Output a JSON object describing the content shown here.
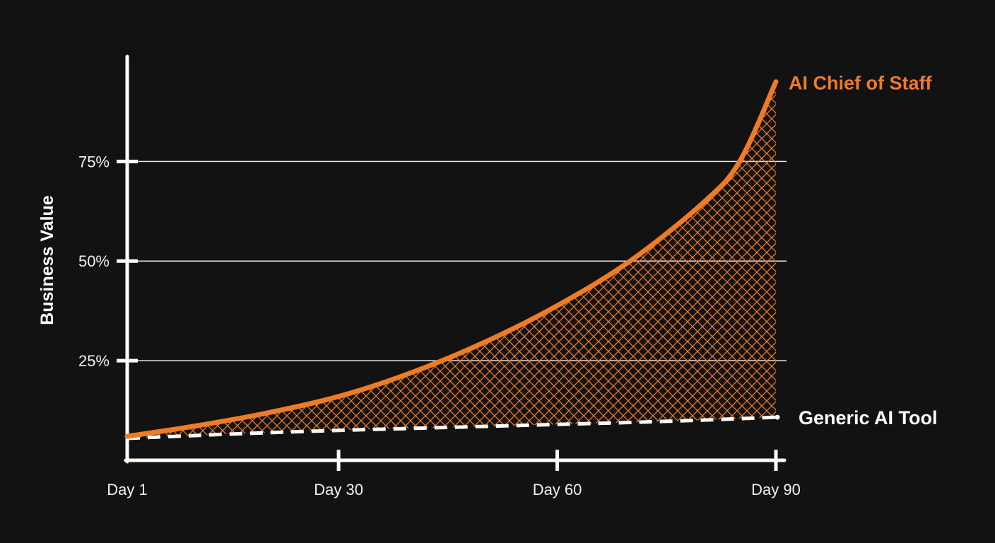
{
  "chart_data": {
    "type": "line",
    "ylabel": "Business Value",
    "xlabel": "",
    "x_ticks": [
      {
        "label": "Day 1",
        "value": 1
      },
      {
        "label": "Day 30",
        "value": 30
      },
      {
        "label": "Day 60",
        "value": 60
      },
      {
        "label": "Day 90",
        "value": 90
      }
    ],
    "y_ticks": [
      {
        "label": "25%",
        "value": 25
      },
      {
        "label": "50%",
        "value": 50
      },
      {
        "label": "75%",
        "value": 75
      }
    ],
    "xlim": [
      1,
      90
    ],
    "ylim": [
      0,
      96
    ],
    "grid": true,
    "shaded_gap_between_series": true,
    "series": [
      {
        "name": "AI Chief of Staff",
        "color": "#ee7b26",
        "style": "solid",
        "x": [
          1,
          10,
          20,
          30,
          40,
          50,
          60,
          70,
          80,
          85,
          90
        ],
        "y": [
          6,
          8.5,
          11.8,
          16,
          22,
          29.6,
          38.8,
          50,
          64.6,
          74.9,
          95
        ]
      },
      {
        "name": "Generic AI Tool",
        "color": "#ffffff",
        "style": "dashed",
        "x": [
          1,
          10,
          20,
          30,
          40,
          50,
          60,
          70,
          80,
          90
        ],
        "y": [
          5.5,
          6.2,
          6.9,
          7.5,
          8,
          8.5,
          9,
          9.5,
          10.1,
          10.8
        ]
      }
    ]
  }
}
